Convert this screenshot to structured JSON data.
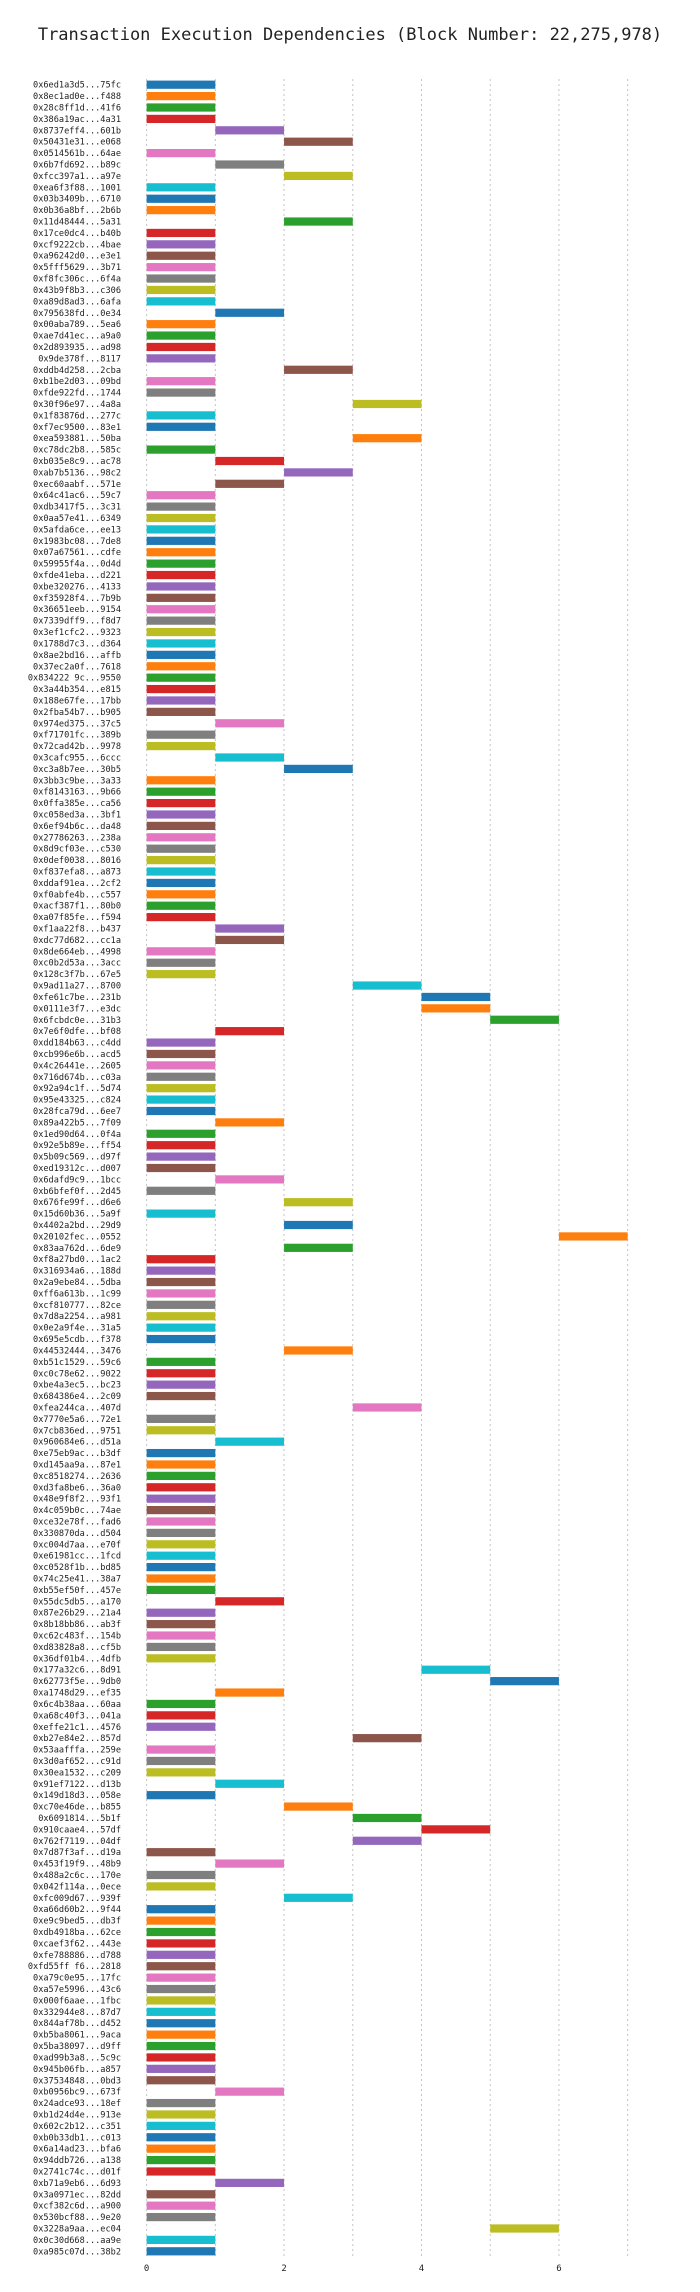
{
  "chart_data": {
    "type": "bar",
    "orientation": "horizontal",
    "title": "Transaction Execution Dependencies (Block Number: 22,275,978)",
    "xlabel": "",
    "ylabel": "",
    "xlim": [
      -0.3,
      7.5
    ],
    "xticks": [
      0,
      2,
      4,
      6
    ],
    "grid": "vertical dotted",
    "palette": [
      "#1f77b4",
      "#ff7f0e",
      "#2ca02c",
      "#d62728",
      "#9467bd",
      "#8c564b",
      "#e377c2",
      "#7f7f7f",
      "#bcbd22",
      "#17becf"
    ],
    "transactions": [
      [
        "0x6ed1a3d5...75fc",
        0,
        1
      ],
      [
        "0x8ec1ad0e...f488",
        0,
        1
      ],
      [
        "0x28c8ff1d...41f6",
        0,
        1
      ],
      [
        "0x386a19ac...4a31",
        0,
        1
      ],
      [
        "0x8737eff4...601b",
        1,
        2
      ],
      [
        "0x50431e31...e068",
        2,
        3
      ],
      [
        "0x0514561b...64ae",
        0,
        1
      ],
      [
        "0x6b7fd692...b89c",
        1,
        2
      ],
      [
        "0xfcc397a1...a97e",
        2,
        3
      ],
      [
        "0xea6f3f88...1001",
        0,
        1
      ],
      [
        "0x03b3409b...6710",
        0,
        1
      ],
      [
        "0x0b36a8bf...2b6b",
        0,
        1
      ],
      [
        "0x11d48444...5a31",
        2,
        3
      ],
      [
        "0x17ce0dc4...b40b",
        0,
        1
      ],
      [
        "0xcf9222cb...4bae",
        0,
        1
      ],
      [
        "0xa96242d0...e3e1",
        0,
        1
      ],
      [
        "0x5fff5629...3b71",
        0,
        1
      ],
      [
        "0xf8fc306c...6f4a",
        0,
        1
      ],
      [
        "0x43b9f8b3...c306",
        0,
        1
      ],
      [
        "0xa89d8ad3...6afa",
        0,
        1
      ],
      [
        "0x795638fd...0e34",
        1,
        2
      ],
      [
        "0x00aba789...5ea6",
        0,
        1
      ],
      [
        "0xae7d41ec...a9a0",
        0,
        1
      ],
      [
        "0x2d893935...ad98",
        0,
        1
      ],
      [
        "0x9de378f...8117",
        0,
        1
      ],
      [
        "0xddb4d258...2cba",
        2,
        3
      ],
      [
        "0xb1be2d03...09bd",
        0,
        1
      ],
      [
        "0xfde922fd...1744",
        0,
        1
      ],
      [
        "0x30f96e97...4a8a",
        3,
        4
      ],
      [
        "0x1f83876d...277c",
        0,
        1
      ],
      [
        "0xf7ec9500...83e1",
        0,
        1
      ],
      [
        "0xea593881...50ba",
        3,
        4
      ],
      [
        "0xc78dc2b8...585c",
        0,
        1
      ],
      [
        "0xb035e8c9...ac78",
        1,
        2
      ],
      [
        "0xab7b5136...98c2",
        2,
        3
      ],
      [
        "0xec60aabf...571e",
        1,
        2
      ],
      [
        "0x64c41ac6...59c7",
        0,
        1
      ],
      [
        "0xdb3417f5...3c31",
        0,
        1
      ],
      [
        "0x0aa57e41...6349",
        0,
        1
      ],
      [
        "0x5afda6ce...ee13",
        0,
        1
      ],
      [
        "0x1983bc08...7de8",
        0,
        1
      ],
      [
        "0x07a67561...cdfe",
        0,
        1
      ],
      [
        "0x59955f4a...0d4d",
        0,
        1
      ],
      [
        "0xfde41eba...d221",
        0,
        1
      ],
      [
        "0xbe320276...4133",
        0,
        1
      ],
      [
        "0xf35928f4...7b9b",
        0,
        1
      ],
      [
        "0x36651eeb...9154",
        0,
        1
      ],
      [
        "0x7339dff9...f8d7",
        0,
        1
      ],
      [
        "0x3ef1cfc2...9323",
        0,
        1
      ],
      [
        "0x1788d7c3...d364",
        0,
        1
      ],
      [
        "0x8ae2bd16...affb",
        0,
        1
      ],
      [
        "0x37ec2a0f...7618",
        0,
        1
      ],
      [
        "0x834222 9c...9550",
        0,
        1
      ],
      [
        "0x3a44b354...e815",
        0,
        1
      ],
      [
        "0x188e67fe...17bb",
        0,
        1
      ],
      [
        "0x2fba54b7...b905",
        0,
        1
      ],
      [
        "0x974ed375...37c5",
        1,
        2
      ],
      [
        "0xf71701fc...389b",
        0,
        1
      ],
      [
        "0x72cad42b...9978",
        0,
        1
      ],
      [
        "0x3cafc955...6ccc",
        1,
        2
      ],
      [
        "0xc3a8b7ee...30b5",
        2,
        3
      ],
      [
        "0x3bb3c9be...3a33",
        0,
        1
      ],
      [
        "0xf8143163...9b66",
        0,
        1
      ],
      [
        "0x0ffa385e...ca56",
        0,
        1
      ],
      [
        "0xc058ed3a...3bf1",
        0,
        1
      ],
      [
        "0x6ef94b6c...da48",
        0,
        1
      ],
      [
        "0x27786263...238a",
        0,
        1
      ],
      [
        "0x8d9cf03e...c530",
        0,
        1
      ],
      [
        "0x0def0038...8016",
        0,
        1
      ],
      [
        "0xf837efa8...a873",
        0,
        1
      ],
      [
        "0xddaf91ea...2cf2",
        0,
        1
      ],
      [
        "0xf0abfe4b...c557",
        0,
        1
      ],
      [
        "0xacf387f1...80b0",
        0,
        1
      ],
      [
        "0xa07f85fe...f594",
        0,
        1
      ],
      [
        "0xf1aa22f8...b437",
        1,
        2
      ],
      [
        "0xdc77d682...cc1a",
        1,
        2
      ],
      [
        "0x8de664eb...4998",
        0,
        1
      ],
      [
        "0xc0b2d53a...3acc",
        0,
        1
      ],
      [
        "0x128c3f7b...67e5",
        0,
        1
      ],
      [
        "0x9ad11a27...8700",
        3,
        4
      ],
      [
        "0xfe61c7be...231b",
        4,
        5
      ],
      [
        "0x0111e3f7...e3dc",
        4,
        5
      ],
      [
        "0x6fcbdc0e...31b3",
        5,
        6
      ],
      [
        "0x7e6f0dfe...bf08",
        1,
        2
      ],
      [
        "0xdd184b63...c4dd",
        0,
        1
      ],
      [
        "0xcb996e6b...acd5",
        0,
        1
      ],
      [
        "0x4c26441e...2605",
        0,
        1
      ],
      [
        "0x716d674b...c03a",
        0,
        1
      ],
      [
        "0x92a94c1f...5d74",
        0,
        1
      ],
      [
        "0x95e43325...c824",
        0,
        1
      ],
      [
        "0x28fca79d...6ee7",
        0,
        1
      ],
      [
        "0x89a422b5...7f09",
        1,
        2
      ],
      [
        "0x1ed90d64...0f4a",
        0,
        1
      ],
      [
        "0x92e5b89e...ff54",
        0,
        1
      ],
      [
        "0x5b09c569...d97f",
        0,
        1
      ],
      [
        "0xed19312c...d007",
        0,
        1
      ],
      [
        "0x6dafd9c9...1bcc",
        1,
        2
      ],
      [
        "0xb6bfef0f...2d45",
        0,
        1
      ],
      [
        "0x676fe99f...d6e6",
        2,
        3
      ],
      [
        "0x15d60b36...5a9f",
        0,
        1
      ],
      [
        "0x4402a2bd...29d9",
        2,
        3
      ],
      [
        "0x20102fec...0552",
        6,
        7
      ],
      [
        "0x83aa762d...6de9",
        2,
        3
      ],
      [
        "0xf8a27bd0...1ac2",
        0,
        1
      ],
      [
        "0x316934a6...188d",
        0,
        1
      ],
      [
        "0x2a9ebe84...5dba",
        0,
        1
      ],
      [
        "0xff6a613b...1c99",
        0,
        1
      ],
      [
        "0xcf810777...82ce",
        0,
        1
      ],
      [
        "0x7d8a2254...a981",
        0,
        1
      ],
      [
        "0x0e2a9f4e...31a5",
        0,
        1
      ],
      [
        "0x695e5cdb...f378",
        0,
        1
      ],
      [
        "0x44532444...3476",
        2,
        3
      ],
      [
        "0xb51c1529...59c6",
        0,
        1
      ],
      [
        "0xc0c78e62...9022",
        0,
        1
      ],
      [
        "0xbe4a3ec5...bc23",
        0,
        1
      ],
      [
        "0x684386e4...2c09",
        0,
        1
      ],
      [
        "0xfea244ca...407d",
        3,
        4
      ],
      [
        "0x7770e5a6...72e1",
        0,
        1
      ],
      [
        "0x7cb836ed...9751",
        0,
        1
      ],
      [
        "0x960684e6...d51a",
        1,
        2
      ],
      [
        "0xe75eb9ac...b3df",
        0,
        1
      ],
      [
        "0xd145aa9a...87e1",
        0,
        1
      ],
      [
        "0xc8518274...2636",
        0,
        1
      ],
      [
        "0xd3fa8be6...36a0",
        0,
        1
      ],
      [
        "0x48e9f8f2...93f1",
        0,
        1
      ],
      [
        "0x4c059b0c...74ae",
        0,
        1
      ],
      [
        "0xce32e78f...fad6",
        0,
        1
      ],
      [
        "0x330870da...d504",
        0,
        1
      ],
      [
        "0xc004d7aa...e70f",
        0,
        1
      ],
      [
        "0xe61981cc...1fcd",
        0,
        1
      ],
      [
        "0xc0528f1b...bd85",
        0,
        1
      ],
      [
        "0x74c25e41...38a7",
        0,
        1
      ],
      [
        "0xb55ef50f...457e",
        0,
        1
      ],
      [
        "0x55dc5db5...a170",
        1,
        2
      ],
      [
        "0x87e26b29...21a4",
        0,
        1
      ],
      [
        "0x8b18bb86...ab3f",
        0,
        1
      ],
      [
        "0xc62c483f...154b",
        0,
        1
      ],
      [
        "0xd83828a8...cf5b",
        0,
        1
      ],
      [
        "0x36df01b4...4dfb",
        0,
        1
      ],
      [
        "0x177a32c6...8d91",
        4,
        5
      ],
      [
        "0x62773f5e...9db0",
        5,
        6
      ],
      [
        "0xa1748d29...ef35",
        1,
        2
      ],
      [
        "0x6c4b38aa...60aa",
        0,
        1
      ],
      [
        "0xa68c40f3...041a",
        0,
        1
      ],
      [
        "0xeffe21c1...4576",
        0,
        1
      ],
      [
        "0xb27e84e2...857d",
        3,
        4
      ],
      [
        "0x53aafffa...259e",
        0,
        1
      ],
      [
        "0x3d0af652...c91d",
        0,
        1
      ],
      [
        "0x30ea1532...c209",
        0,
        1
      ],
      [
        "0x91ef7122...d13b",
        1,
        2
      ],
      [
        "0x149d18d3...058e",
        0,
        1
      ],
      [
        "0xc70e46de...b855",
        2,
        3
      ],
      [
        "0x6091814...5b1f",
        3,
        4
      ],
      [
        "0x910caae4...57df",
        4,
        5
      ],
      [
        "0x762f7119...04df",
        3,
        4
      ],
      [
        "0x7d87f3af...d19a",
        0,
        1
      ],
      [
        "0x453f19f9...48b9",
        1,
        2
      ],
      [
        "0x488a2c6c...170e",
        0,
        1
      ],
      [
        "0x042f114a...0ece",
        0,
        1
      ],
      [
        "0xfc009d67...939f",
        2,
        3
      ],
      [
        "0xa66d60b2...9f44",
        0,
        1
      ],
      [
        "0xe9c9bed5...db3f",
        0,
        1
      ],
      [
        "0xdb4918ba...62ce",
        0,
        1
      ],
      [
        "0xcaef3f62...443e",
        0,
        1
      ],
      [
        "0xfe788886...d788",
        0,
        1
      ],
      [
        "0xfd55ff f6...2818",
        0,
        1
      ],
      [
        "0xa79c0e95...17fc",
        0,
        1
      ],
      [
        "0xa57e5996...43c6",
        0,
        1
      ],
      [
        "0x000f6aae...1fbc",
        0,
        1
      ],
      [
        "0x332944e8...87d7",
        0,
        1
      ],
      [
        "0x844af78b...d452",
        0,
        1
      ],
      [
        "0xb5ba8061...9aca",
        0,
        1
      ],
      [
        "0x5ba38097...d9ff",
        0,
        1
      ],
      [
        "0xad99b3a8...5c9c",
        0,
        1
      ],
      [
        "0x945b06fb...a857",
        0,
        1
      ],
      [
        "0x37534848...0bd3",
        0,
        1
      ],
      [
        "0xb0956bc9...673f",
        1,
        2
      ],
      [
        "0x24adce93...18ef",
        0,
        1
      ],
      [
        "0xb1d24d4e...913e",
        0,
        1
      ],
      [
        "0x602c2b12...c351",
        0,
        1
      ],
      [
        "0xb0b33db1...c013",
        0,
        1
      ],
      [
        "0x6a14ad23...bfa6",
        0,
        1
      ],
      [
        "0x94ddb726...a138",
        0,
        1
      ],
      [
        "0x2741c74c...d01f",
        0,
        1
      ],
      [
        "0xb71a9eb6...6d93",
        1,
        2
      ],
      [
        "0x3a0971ec...82dd",
        0,
        1
      ],
      [
        "0xcf382c6d...a900",
        0,
        1
      ],
      [
        "0x530bcf88...9e20",
        0,
        1
      ],
      [
        "0x3228a9aa...ec04",
        5,
        6
      ],
      [
        "0x0c30d668...aa9e",
        0,
        1
      ],
      [
        "0xa985c07d...38b2",
        0,
        1
      ]
    ]
  }
}
